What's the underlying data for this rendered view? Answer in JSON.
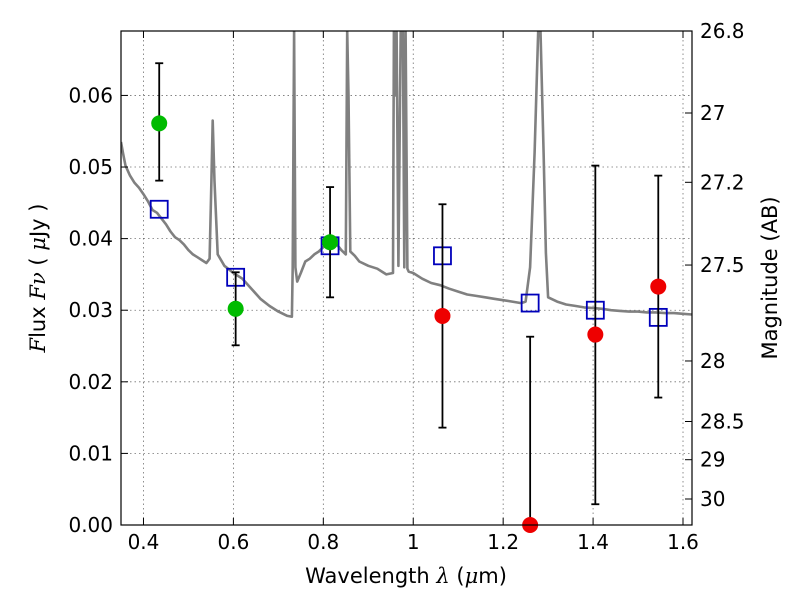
{
  "chart_data": {
    "type": "scatter",
    "title": "",
    "xlabel": "Wavelength  λ (μm)",
    "ylabel": "Flux  Fν  ( μJy )",
    "y2label": "Magnitude (AB)",
    "xlim": [
      0.35,
      1.62
    ],
    "ylim": [
      0.0,
      0.069
    ],
    "grid": true,
    "legend": "none",
    "x_ticks": [
      0.4,
      0.6,
      0.8,
      1.0,
      1.2,
      1.4,
      1.6
    ],
    "x_tick_labels": [
      "0.4",
      "0.6",
      "0.8",
      "1",
      "1.2",
      "1.4",
      "1.6"
    ],
    "y_ticks": [
      0.0,
      0.01,
      0.02,
      0.03,
      0.04,
      0.05,
      0.06
    ],
    "y_tick_labels": [
      "0.00",
      "0.01",
      "0.02",
      "0.03",
      "0.04",
      "0.05",
      "0.06"
    ],
    "magnitude_ticks": [
      26.8,
      27,
      27.2,
      27.5,
      28,
      28.5,
      29,
      30
    ],
    "magnitude_tick_labels": [
      "26.8",
      "27",
      "27.2",
      "27.5",
      "28",
      "28.5",
      "29",
      "30"
    ],
    "colors": {
      "model": "#808080",
      "observed_optical": "#00bb00",
      "observed_ir": "#ee0000",
      "synthetic": "#0000bb",
      "errorbar": "#000000"
    },
    "series": [
      {
        "kind": "model-spectrum",
        "x": [
          0.35,
          0.355,
          0.36,
          0.37,
          0.38,
          0.39,
          0.4,
          0.41,
          0.42,
          0.43,
          0.44,
          0.45,
          0.46,
          0.47,
          0.48,
          0.49,
          0.5,
          0.51,
          0.52,
          0.53,
          0.54,
          0.547,
          0.551,
          0.554,
          0.558,
          0.565,
          0.58,
          0.6,
          0.62,
          0.64,
          0.66,
          0.68,
          0.7,
          0.72,
          0.73,
          0.732,
          0.735,
          0.738,
          0.742,
          0.75,
          0.76,
          0.77,
          0.78,
          0.79,
          0.8,
          0.81,
          0.82,
          0.83,
          0.84,
          0.85,
          0.853,
          0.856,
          0.86,
          0.87,
          0.88,
          0.9,
          0.92,
          0.94,
          0.955,
          0.957,
          0.96,
          0.963,
          0.967,
          0.972,
          0.977,
          0.98,
          0.983,
          0.987,
          0.99,
          1.0,
          1.02,
          1.04,
          1.06,
          1.08,
          1.1,
          1.12,
          1.14,
          1.16,
          1.18,
          1.2,
          1.22,
          1.24,
          1.25,
          1.26,
          1.27,
          1.278,
          1.283,
          1.29,
          1.295,
          1.3,
          1.32,
          1.34,
          1.36,
          1.38,
          1.4,
          1.42,
          1.44,
          1.46,
          1.48,
          1.5,
          1.52,
          1.54,
          1.56,
          1.58,
          1.6,
          1.62
        ],
        "y": [
          0.0535,
          0.0518,
          0.0502,
          0.0488,
          0.0478,
          0.0471,
          0.0462,
          0.0452,
          0.044,
          0.0436,
          0.0428,
          0.042,
          0.041,
          0.0402,
          0.0398,
          0.0392,
          0.0384,
          0.0378,
          0.0374,
          0.037,
          0.0366,
          0.0372,
          0.048,
          0.0565,
          0.048,
          0.0378,
          0.0362,
          0.0352,
          0.0344,
          0.033,
          0.0316,
          0.0306,
          0.0298,
          0.0292,
          0.0291,
          0.036,
          0.069,
          0.036,
          0.034,
          0.0352,
          0.0368,
          0.0372,
          0.0378,
          0.0382,
          0.0388,
          0.0396,
          0.0402,
          0.0392,
          0.0384,
          0.0378,
          0.069,
          0.06,
          0.0382,
          0.0376,
          0.0368,
          0.0362,
          0.0358,
          0.035,
          0.0352,
          0.069,
          0.06,
          0.069,
          0.0362,
          0.069,
          0.069,
          0.036,
          0.069,
          0.0358,
          0.0354,
          0.0352,
          0.0344,
          0.0338,
          0.0335,
          0.033,
          0.0326,
          0.0322,
          0.032,
          0.0318,
          0.0316,
          0.0314,
          0.0312,
          0.031,
          0.0312,
          0.036,
          0.052,
          0.069,
          0.069,
          0.052,
          0.038,
          0.0318,
          0.0312,
          0.0308,
          0.0306,
          0.0304,
          0.0303,
          0.0302,
          0.03,
          0.0299,
          0.0298,
          0.0298,
          0.0297,
          0.0297,
          0.0296,
          0.0296,
          0.0295,
          0.0294
        ]
      },
      {
        "kind": "synthetic-photometry",
        "marker": "open-square",
        "x": [
          0.435,
          0.605,
          0.815,
          1.065,
          1.26,
          1.405,
          1.545
        ],
        "y": [
          0.0441,
          0.0346,
          0.039,
          0.0376,
          0.031,
          0.03,
          0.029
        ]
      },
      {
        "kind": "observed-optical",
        "marker": "filled-circle",
        "x": [
          0.435,
          0.605,
          0.815
        ],
        "y": [
          0.0561,
          0.0302,
          0.0395
        ],
        "err_low": [
          0.0481,
          0.0251,
          0.0318
        ],
        "err_high": [
          0.0645,
          0.0353,
          0.0472
        ]
      },
      {
        "kind": "observed-ir",
        "marker": "filled-circle",
        "x": [
          1.065,
          1.26,
          1.405,
          1.545
        ],
        "y": [
          0.0292,
          0.0,
          0.0266,
          0.0333
        ],
        "err_low": [
          0.0136,
          0.0,
          0.0029,
          0.0178
        ],
        "err_high": [
          0.0448,
          0.0263,
          0.0502,
          0.0488
        ]
      }
    ]
  }
}
